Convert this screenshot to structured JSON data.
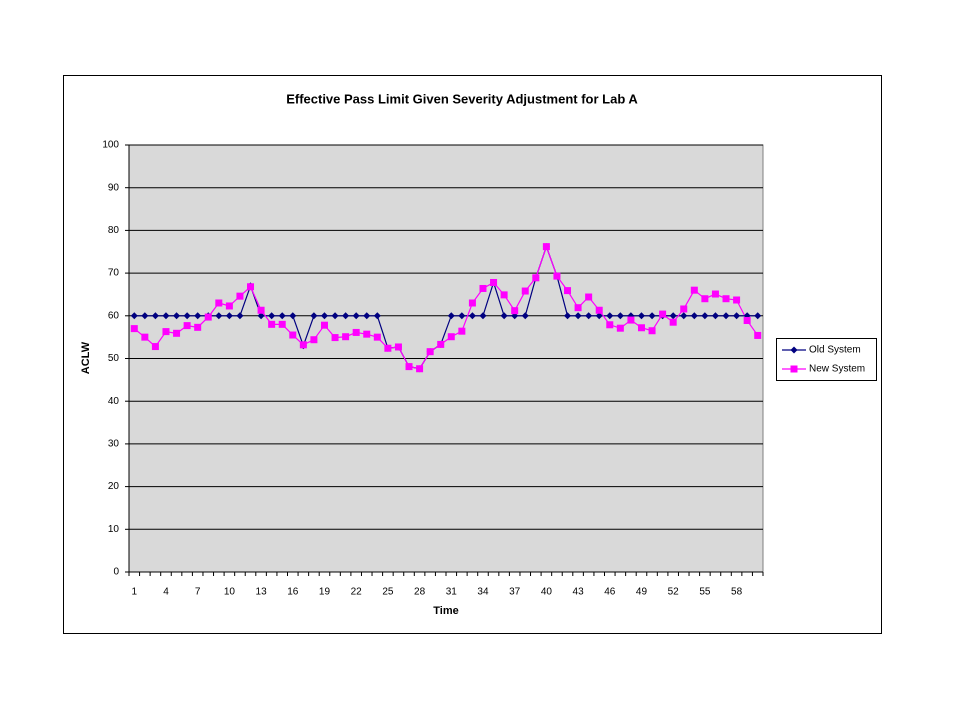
{
  "chart_data": {
    "type": "line",
    "title": "Effective Pass Limit Given Severity Adjustment for Lab A",
    "x_label": "Time",
    "y_label": "ACLW",
    "categories": [
      "1",
      null,
      null,
      "4",
      null,
      null,
      "7",
      null,
      null,
      "10",
      null,
      null,
      "13",
      null,
      null,
      "16",
      null,
      null,
      "19",
      null,
      null,
      "22",
      null,
      null,
      "25",
      null,
      null,
      "28",
      null,
      null,
      "31",
      null,
      null,
      "34",
      null,
      null,
      "37",
      null,
      null,
      "40",
      null,
      null,
      "43",
      null,
      null,
      "46",
      null,
      null,
      "49",
      null,
      null,
      "52",
      null,
      null,
      "55",
      null,
      null,
      "58",
      null,
      null
    ],
    "series": [
      {
        "name": "Old System",
        "color": "#000080",
        "marker": "diamond",
        "values": [
          60,
          60,
          60,
          60,
          60,
          60,
          60,
          60,
          60,
          60,
          60,
          67,
          60,
          60,
          60,
          60,
          53,
          60,
          60,
          60,
          60,
          60,
          60,
          60,
          52.4,
          52.7,
          48.1,
          47.6,
          51.6,
          53.3,
          60,
          60,
          60,
          60,
          67.8,
          60,
          60,
          60,
          68.9,
          76.2,
          69.3,
          60,
          60,
          60,
          60,
          60,
          60,
          60,
          60,
          60,
          60,
          60,
          60,
          60,
          60,
          60,
          60,
          60,
          60,
          60
        ]
      },
      {
        "name": "New System",
        "color": "#ff00ff",
        "marker": "square",
        "values": [
          57,
          55,
          52.8,
          56.3,
          55.9,
          57.7,
          57.3,
          59.7,
          63,
          62.3,
          64.6,
          66.8,
          61.3,
          58,
          58,
          55.5,
          53.2,
          54.4,
          57.8,
          54.9,
          55.1,
          56.1,
          55.7,
          55,
          52.4,
          52.7,
          48.1,
          47.6,
          51.6,
          53.3,
          55.1,
          56.4,
          63,
          66.4,
          67.8,
          64.9,
          61.2,
          65.8,
          68.9,
          76.2,
          69.3,
          65.9,
          61.9,
          64.4,
          61.3,
          57.9,
          57.1,
          59,
          57.2,
          56.5,
          60.4,
          58.5,
          61.6,
          66,
          64,
          65.1,
          64,
          63.7,
          58.9,
          55.4
        ]
      }
    ],
    "ylim": [
      0,
      100
    ],
    "yticks": [
      0,
      10,
      20,
      30,
      40,
      50,
      60,
      70,
      80,
      90,
      100
    ],
    "grid": true,
    "legend": "right"
  }
}
